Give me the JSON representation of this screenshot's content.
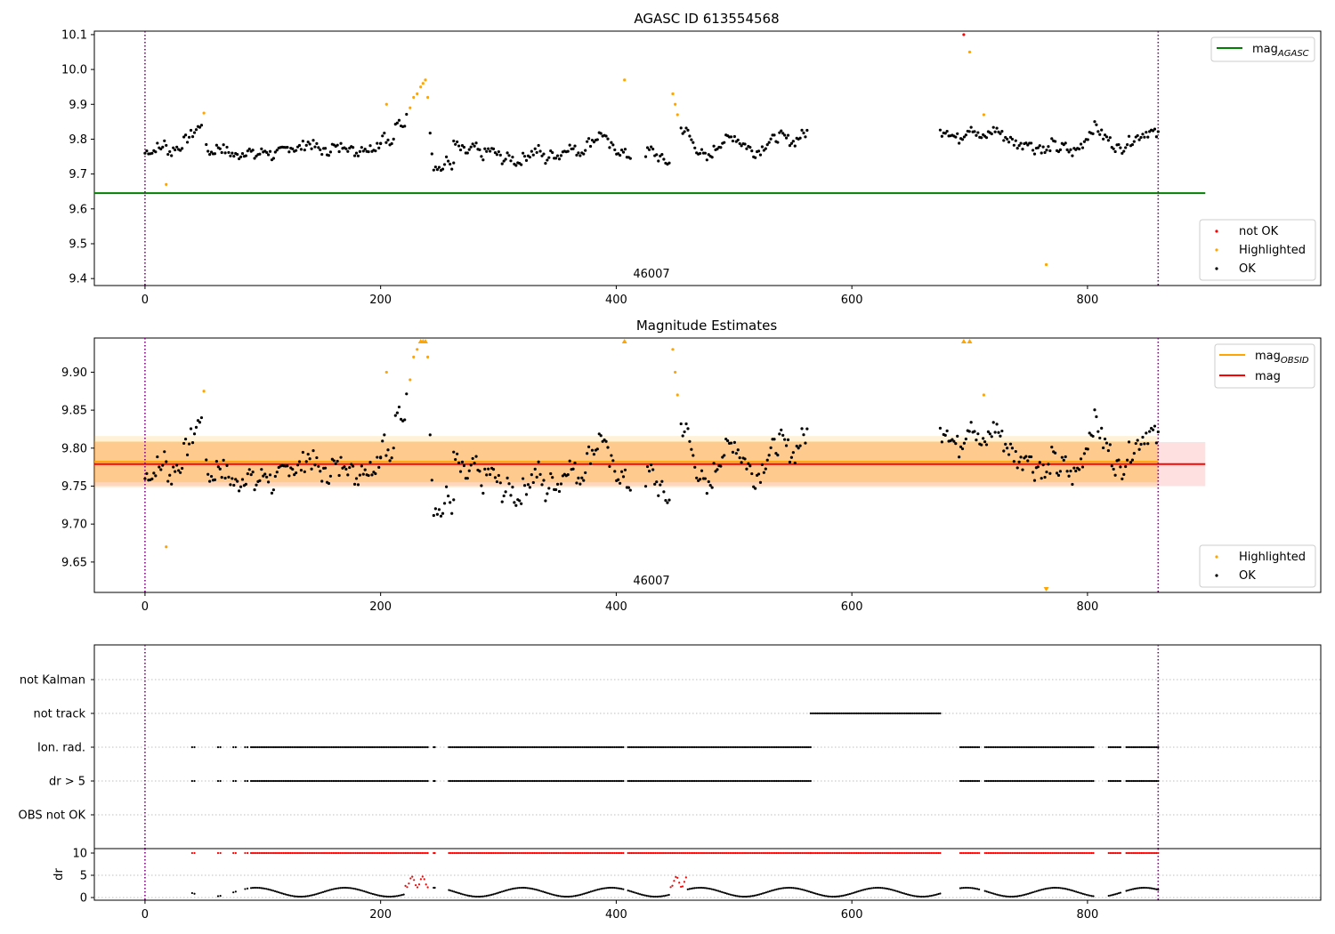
{
  "chart_data": [
    {
      "type": "scatter",
      "title": "AGASC ID 613554568",
      "annotation": "46007",
      "xlim": [
        -43,
        998
      ],
      "ylim": [
        9.38,
        10.11
      ],
      "xticks": [
        0,
        200,
        400,
        600,
        800
      ],
      "yticks": [
        9.4,
        9.5,
        9.6,
        9.7,
        9.8,
        9.9,
        10.0,
        10.1
      ],
      "vlines": [
        0,
        860
      ],
      "hline": {
        "name": "mag_AGASC",
        "y": 9.645,
        "x_range": [
          -43,
          900
        ],
        "color": "#008000"
      },
      "colors": {
        "ok": "#000000",
        "highlighted": "#ffa500",
        "not_ok": "#ff0000",
        "vline": "#800080"
      },
      "series_legend": [
        "not OK",
        "Highlighted",
        "OK"
      ],
      "series": [
        {
          "name": "OK",
          "color": "#000000",
          "segments": [
            {
              "x_start": 0,
              "x_end": 48,
              "values": [
                9.76,
                9.77,
                9.76,
                9.78,
                9.77,
                9.79,
                9.77,
                9.76,
                9.78,
                9.77,
                9.79,
                9.8,
                9.81,
                9.82,
                9.83,
                9.85
              ]
            },
            {
              "x_start": 52,
              "x_end": 200,
              "values": [
                9.77,
                9.76,
                9.78,
                9.77,
                9.76,
                9.75,
                9.76,
                9.77,
                9.75,
                9.76,
                9.77,
                9.75,
                9.76,
                9.77,
                9.78,
                9.77,
                9.78,
                9.79,
                9.78,
                9.77,
                9.76,
                9.78,
                9.77,
                9.79,
                9.77,
                9.76,
                9.78,
                9.77,
                9.78,
                9.79
              ]
            },
            {
              "x_start": 200,
              "x_end": 222,
              "values": [
                9.8,
                9.82,
                9.79,
                9.78,
                9.83,
                9.85,
                9.84,
                9.86
              ]
            },
            {
              "x_start": 242,
              "x_end": 262,
              "values": [
                9.83,
                9.72,
                9.73,
                9.71,
                9.72,
                9.74,
                9.73,
                9.72
              ]
            },
            {
              "x_start": 262,
              "x_end": 412,
              "values": [
                9.79,
                9.77,
                9.76,
                9.78,
                9.75,
                9.77,
                9.76,
                9.74,
                9.75,
                9.73,
                9.75,
                9.76,
                9.77,
                9.74,
                9.76,
                9.75,
                9.78,
                9.77,
                9.76,
                9.79,
                9.8,
                9.82,
                9.78,
                9.77,
                9.76,
                9.75
              ]
            },
            {
              "x_start": 425,
              "x_end": 445,
              "values": [
                9.76,
                9.77,
                9.75,
                9.74,
                9.73
              ]
            },
            {
              "x_start": 455,
              "x_end": 562,
              "values": [
                9.83,
                9.82,
                9.78,
                9.76,
                9.74,
                9.77,
                9.79,
                9.8,
                9.81,
                9.79,
                9.78,
                9.76,
                9.77,
                9.79,
                9.8,
                9.81,
                9.8,
                9.79,
                9.81,
                9.82
              ]
            },
            {
              "x_start": 675,
              "x_end": 860,
              "values": [
                9.82,
                9.83,
                9.81,
                9.8,
                9.82,
                9.84,
                9.81,
                9.8,
                9.82,
                9.83,
                9.81,
                9.8,
                9.79,
                9.78,
                9.8,
                9.77,
                9.78,
                9.76,
                9.79,
                9.77,
                9.78,
                9.76,
                9.77,
                9.79,
                9.82,
                9.84,
                9.81,
                9.8,
                9.78,
                9.77,
                9.79,
                9.8,
                9.81,
                9.82,
                9.82,
                9.81
              ]
            }
          ]
        },
        {
          "name": "Highlighted",
          "color": "#ffa500",
          "points": [
            [
              18,
              9.67
            ],
            [
              50,
              9.875
            ],
            [
              205,
              9.9
            ],
            [
              225,
              9.89
            ],
            [
              228,
              9.92
            ],
            [
              231,
              9.93
            ],
            [
              234,
              9.95
            ],
            [
              236,
              9.96
            ],
            [
              238,
              9.97
            ],
            [
              240,
              9.92
            ],
            [
              407,
              9.97
            ],
            [
              448,
              9.93
            ],
            [
              450,
              9.9
            ],
            [
              452,
              9.87
            ],
            [
              700,
              10.05
            ],
            [
              712,
              9.87
            ],
            [
              765,
              9.44
            ]
          ]
        },
        {
          "name": "not OK",
          "color": "#ff0000",
          "points": [
            [
              695,
              10.1
            ]
          ]
        }
      ]
    },
    {
      "type": "scatter",
      "title": "Magnitude Estimates",
      "annotation": "46007",
      "xlim": [
        -43,
        998
      ],
      "ylim": [
        9.61,
        9.945
      ],
      "xticks": [
        0,
        200,
        400,
        600,
        800
      ],
      "yticks": [
        9.65,
        9.7,
        9.75,
        9.8,
        9.85,
        9.9
      ],
      "vlines": [
        0,
        860
      ],
      "lines": [
        {
          "name": "mag_OBSID",
          "y": 9.782,
          "x_range": [
            -43,
            860
          ],
          "color": "#ffa500"
        },
        {
          "name": "mag",
          "y": 9.779,
          "x_range": [
            -43,
            900
          ],
          "color": "#ff0000"
        }
      ],
      "bands": [
        {
          "name": "mag band",
          "y_range": [
            9.75,
            9.808
          ],
          "x_range": [
            -43,
            900
          ],
          "color": "#ff0000",
          "opacity": 0.12
        },
        {
          "name": "OBSID band outer",
          "y_range": [
            9.748,
            9.816
          ],
          "x_range": [
            -43,
            860
          ],
          "color": "#ffa500",
          "opacity": 0.15
        },
        {
          "name": "OBSID band inner",
          "y_range": [
            9.755,
            9.809
          ],
          "x_range": [
            -43,
            860
          ],
          "color": "#ffa500",
          "opacity": 0.25
        }
      ],
      "series_legend": [
        "Highlighted",
        "OK"
      ],
      "line_legend": [
        "mag_OBSID",
        "mag"
      ]
    },
    {
      "type": "scatter",
      "title": "",
      "xlim": [
        -43,
        998
      ],
      "xticks": [
        0,
        200,
        400,
        600,
        800
      ],
      "vlines": [
        0,
        860
      ],
      "flag_rows": [
        "not Kalman",
        "not track",
        "Ion. rad.",
        "dr > 5",
        "OBS not OK"
      ],
      "flag_spans": {
        "not track": [
          [
            565,
            675
          ]
        ],
        "Ion. rad.": [
          [
            40,
            42
          ],
          [
            62,
            64
          ],
          [
            75,
            77
          ],
          [
            85,
            87
          ],
          [
            90,
            240
          ],
          [
            245,
            246
          ],
          [
            258,
            406
          ],
          [
            410,
            565
          ],
          [
            692,
            708
          ],
          [
            713,
            805
          ],
          [
            818,
            828
          ],
          [
            833,
            860
          ]
        ],
        "dr > 5": [
          [
            40,
            42
          ],
          [
            62,
            64
          ],
          [
            75,
            77
          ],
          [
            85,
            87
          ],
          [
            90,
            240
          ],
          [
            245,
            246
          ],
          [
            258,
            406
          ],
          [
            410,
            565
          ],
          [
            692,
            708
          ],
          [
            713,
            805
          ],
          [
            818,
            828
          ],
          [
            833,
            860
          ]
        ]
      },
      "dr": {
        "ylabel": "dr",
        "yticks": [
          0,
          5,
          10
        ],
        "ylim": [
          -0.6,
          11
        ],
        "colors": {
          "ok": "#000000",
          "above": "#ff0000"
        }
      }
    }
  ],
  "legends": {
    "mag_agasc": {
      "base": "mag",
      "sub": "AGASC"
    },
    "mag_obsid": {
      "base": "mag",
      "sub": "OBSID"
    },
    "mag": "mag",
    "not_ok": "not OK",
    "highlighted": "Highlighted",
    "ok": "OK"
  }
}
